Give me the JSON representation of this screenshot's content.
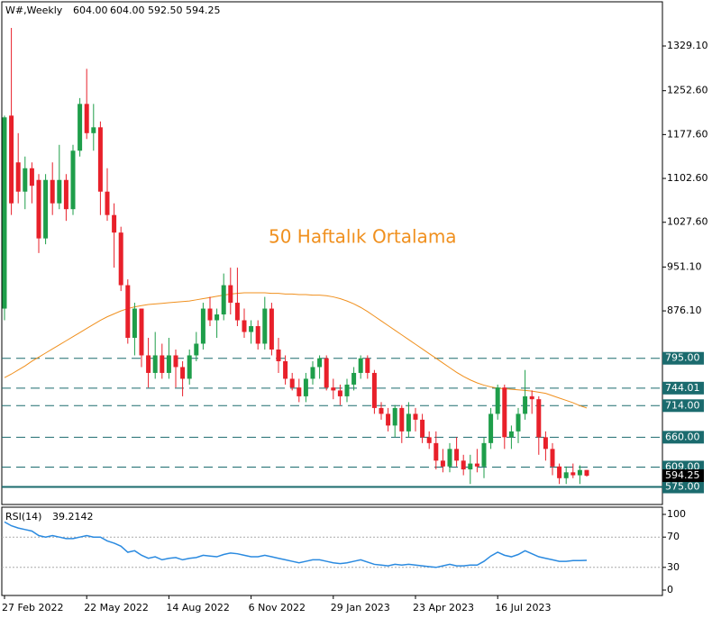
{
  "chart_data": [
    {
      "type": "candlestick",
      "symbol": "W#,Weekly",
      "ohlc_text": [
        "604.00",
        "604.00",
        "592.50",
        "594.25"
      ],
      "annotation": "50 Haftalık Ortalama",
      "categories": [
        "27 Feb 2022",
        null,
        null,
        null,
        null,
        null,
        null,
        null,
        null,
        null,
        null,
        null,
        "22 May 2022",
        null,
        null,
        null,
        null,
        null,
        null,
        null,
        null,
        null,
        null,
        null,
        "14 Aug 2022",
        null,
        null,
        null,
        null,
        null,
        null,
        null,
        null,
        null,
        null,
        null,
        "6 Nov 2022",
        null,
        null,
        null,
        null,
        null,
        null,
        null,
        null,
        null,
        null,
        null,
        "29 Jan 2023",
        null,
        null,
        null,
        null,
        null,
        null,
        null,
        null,
        null,
        null,
        null,
        "23 Apr 2023",
        null,
        null,
        null,
        null,
        null,
        null,
        null,
        null,
        null,
        null,
        null,
        "16 Jul 2023",
        null,
        null,
        null,
        null,
        null,
        null,
        null,
        null,
        null,
        null,
        null,
        null,
        null
      ],
      "open": [
        880,
        1210,
        1130,
        1080,
        1120,
        1100,
        1000,
        1100,
        1060,
        1100,
        1050,
        1150,
        1230,
        1180,
        1190,
        1080,
        1040,
        1010,
        920,
        830,
        880,
        800,
        770,
        800,
        770,
        800,
        780,
        760,
        800,
        820,
        880,
        860,
        870,
        920,
        890,
        860,
        840,
        850,
        820,
        880,
        810,
        790,
        760,
        745,
        730,
        760,
        780,
        795,
        745,
        740,
        730,
        750,
        770,
        795,
        770,
        710,
        700,
        680,
        710,
        670,
        700,
        690,
        660,
        650,
        620,
        610,
        640,
        620,
        605,
        615,
        610,
        650,
        700,
        745,
        660,
        670,
        700,
        730,
        725,
        660,
        640,
        610,
        590,
        600,
        595,
        604
      ],
      "high": [
        1210,
        1360,
        1180,
        1140,
        1130,
        1110,
        1110,
        1130,
        1160,
        1110,
        1160,
        1240,
        1290,
        1230,
        1200,
        1120,
        1060,
        1020,
        930,
        890,
        880,
        830,
        840,
        820,
        830,
        810,
        790,
        810,
        840,
        890,
        900,
        880,
        940,
        950,
        950,
        880,
        860,
        860,
        900,
        890,
        830,
        800,
        770,
        760,
        770,
        790,
        800,
        800,
        760,
        750,
        760,
        780,
        800,
        800,
        775,
        720,
        710,
        715,
        715,
        720,
        710,
        700,
        670,
        670,
        640,
        650,
        660,
        630,
        630,
        640,
        660,
        710,
        750,
        750,
        680,
        710,
        775,
        740,
        730,
        670,
        650,
        615,
        610,
        615,
        612,
        604
      ],
      "low": [
        860,
        1040,
        1060,
        1050,
        1060,
        975,
        990,
        1040,
        1050,
        1030,
        1040,
        1140,
        1170,
        1150,
        1040,
        1030,
        950,
        910,
        820,
        800,
        780,
        745,
        760,
        760,
        760,
        745,
        730,
        750,
        790,
        810,
        850,
        830,
        860,
        870,
        850,
        830,
        820,
        810,
        810,
        800,
        770,
        750,
        740,
        720,
        720,
        750,
        760,
        740,
        725,
        715,
        720,
        740,
        760,
        760,
        700,
        690,
        670,
        660,
        650,
        660,
        670,
        650,
        640,
        605,
        600,
        600,
        610,
        595,
        580,
        600,
        590,
        640,
        690,
        640,
        640,
        650,
        690,
        700,
        630,
        620,
        595,
        580,
        580,
        590,
        580,
        592.5
      ],
      "close": [
        1207,
        1060,
        1080,
        1120,
        1090,
        1000,
        1100,
        1060,
        1100,
        1050,
        1150,
        1230,
        1180,
        1190,
        1080,
        1040,
        1010,
        920,
        830,
        880,
        800,
        770,
        800,
        770,
        800,
        780,
        760,
        800,
        820,
        880,
        860,
        870,
        920,
        890,
        860,
        840,
        850,
        820,
        880,
        810,
        790,
        760,
        745,
        730,
        760,
        780,
        795,
        745,
        740,
        730,
        750,
        770,
        795,
        770,
        710,
        700,
        680,
        710,
        670,
        700,
        690,
        660,
        650,
        620,
        610,
        640,
        620,
        605,
        615,
        610,
        650,
        700,
        745,
        660,
        670,
        700,
        730,
        725,
        660,
        640,
        610,
        590,
        600,
        595,
        604,
        594.25
      ],
      "up_color": "#1e9e4a",
      "down_color": "#e8202a",
      "ma": {
        "color": "#f0901e",
        "values": [
          762,
          768,
          775,
          782,
          790,
          797,
          804,
          811,
          818,
          825,
          832,
          839,
          846,
          853,
          860,
          866,
          871,
          876,
          880,
          883,
          885,
          887,
          888,
          889,
          890,
          891,
          892,
          893,
          895,
          897,
          899,
          901,
          903,
          905,
          906,
          907,
          907,
          907,
          907,
          906,
          906,
          905,
          905,
          904,
          904,
          903,
          903,
          902,
          900,
          897,
          893,
          888,
          882,
          875,
          867,
          859,
          851,
          843,
          835,
          827,
          819,
          811,
          803,
          795,
          787,
          779,
          771,
          764,
          758,
          753,
          749,
          746,
          744,
          743,
          742,
          741,
          740,
          739,
          737,
          735,
          731,
          727,
          723,
          719,
          714,
          710
        ]
      },
      "levels": [
        {
          "value": 795,
          "label": "795.00"
        },
        {
          "value": 744.01,
          "label": "744.01"
        },
        {
          "value": 714,
          "label": "714.00"
        },
        {
          "value": 660,
          "label": "660.00"
        },
        {
          "value": 609,
          "label": "609.00"
        },
        {
          "value": 575,
          "label": "575.00"
        }
      ],
      "level_color": "#1b6b6e",
      "current_price": {
        "value": 594.25,
        "label": "594.25"
      },
      "ylim": [
        545,
        1400
      ],
      "yticks": [
        {
          "value": 1329.1,
          "label": "1329.10"
        },
        {
          "value": 1252.6,
          "label": "1252.60"
        },
        {
          "value": 1177.6,
          "label": "1177.60"
        },
        {
          "value": 1102.6,
          "label": "1102.60"
        },
        {
          "value": 1027.6,
          "label": "1027.60"
        },
        {
          "value": 951.1,
          "label": "951.10"
        },
        {
          "value": 876.1,
          "label": "876.10"
        }
      ]
    },
    {
      "type": "line",
      "label": "RSI(14)",
      "last_value": 39.2142,
      "color": "#2a8ae0",
      "values": [
        90,
        85,
        82,
        80,
        78,
        72,
        70,
        72,
        70,
        68,
        68,
        70,
        72,
        70,
        70,
        65,
        62,
        58,
        50,
        52,
        46,
        42,
        44,
        40,
        42,
        43,
        40,
        42,
        43,
        46,
        45,
        44,
        47,
        49,
        48,
        46,
        44,
        44,
        46,
        44,
        42,
        40,
        38,
        36,
        38,
        40,
        40,
        38,
        36,
        35,
        36,
        38,
        40,
        37,
        34,
        33,
        32,
        34,
        33,
        34,
        33,
        32,
        31,
        30,
        32,
        34,
        32,
        32,
        33,
        33,
        38,
        45,
        50,
        46,
        44,
        47,
        52,
        48,
        44,
        42,
        40,
        38,
        38,
        39,
        39,
        39.2142
      ],
      "ylim": [
        0,
        100
      ],
      "yticks": [
        0,
        30,
        70,
        100
      ],
      "levels": [
        30,
        70
      ]
    }
  ]
}
